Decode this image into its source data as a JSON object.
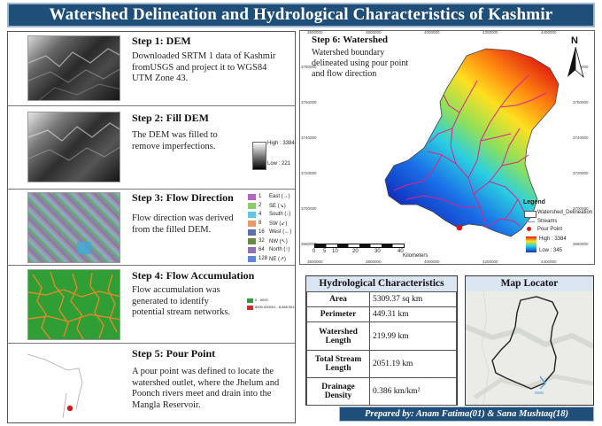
{
  "title": "Watershed Delineation and Hydrological Characteristics of Kashmir",
  "steps": [
    {
      "title": "Step 1: DEM",
      "desc": "Downloaded SRTM 1 data of Kashmir fromUSGS and project it to WGS84 UTM Zone 43."
    },
    {
      "title": "Step 2: Fill DEM",
      "desc": "The DEM was filled to remove imperfections."
    },
    {
      "title": "Step 3: Flow Direction",
      "desc": "Flow direction was derived from the filled DEM."
    },
    {
      "title": "Step 4: Flow Accumulation",
      "desc": "Flow accumulation was generated to identify potential stream networks."
    },
    {
      "title": "Step 5: Pour Point",
      "desc": "A pour point was defined to locate the watershed outlet, where the Jhelum and Poonch rivers meet and drain into the Mangla Reservoir."
    }
  ],
  "fill_legend": {
    "high": "High : 3384",
    "low": "Low : 221"
  },
  "flow_dir_legend": [
    {
      "code": "1",
      "label": "East (→)",
      "color": "#b565c0"
    },
    {
      "code": "2",
      "label": "SE (↘)",
      "color": "#8ccc6a"
    },
    {
      "code": "4",
      "label": "South (↓)",
      "color": "#5fc8e0"
    },
    {
      "code": "8",
      "label": "SW (↙)",
      "color": "#e69a6a"
    },
    {
      "code": "16",
      "label": "West (←)",
      "color": "#5a6fb0"
    },
    {
      "code": "32",
      "label": "NW (↖)",
      "color": "#6a8a48"
    },
    {
      "code": "64",
      "label": "North (↑)",
      "color": "#8f6fb8"
    },
    {
      "code": "128",
      "label": "NE (↗)",
      "color": "#5e86d6"
    }
  ],
  "flow_acc_legend": [
    {
      "label": "0 - 5000",
      "color": "#2e9e35"
    },
    {
      "label": "5000.000001 - 8,885,961",
      "color": "#d12a2a"
    }
  ],
  "map": {
    "step_title": "Step 6: Watershed",
    "desc": "Watershed boundary delineated using pour point and flow direction",
    "north_label": "N",
    "legend": {
      "title": "Legend",
      "boundary": "Watershed_Delineation",
      "streams": "Streams",
      "pour_point": "Pour Point",
      "high": "High : 3384",
      "low": "Low : 345"
    },
    "scale_labels": [
      "0",
      "5",
      "10",
      "20",
      "30",
      "40"
    ],
    "scale_unit": "Kilometers",
    "top_ticks": [
      "3600000",
      "3800000",
      "4000000",
      "4200000",
      "4400000"
    ],
    "bottom_ticks": [
      "3600000",
      "3800000",
      "4000000",
      "4200000",
      "4400000"
    ],
    "left_ticks": [
      "3780000",
      "3760000",
      "3740000",
      "3720000",
      "3700000",
      "3680000"
    ],
    "right_ticks": [
      "3780000",
      "3760000",
      "3740000",
      "3720000",
      "3700000",
      "3680000"
    ]
  },
  "hydro": {
    "title": "Hydrological Characteristics",
    "rows": [
      {
        "key": "Area",
        "value": "5309.37 sq km"
      },
      {
        "key": "Perimeter",
        "value": "449.31 km"
      },
      {
        "key": "Watershed Length",
        "value": "219.99 km"
      },
      {
        "key": "Total Stream Length",
        "value": "2051.19 km"
      },
      {
        "key": "Drainage Density",
        "value": "0.386 km/km²"
      }
    ]
  },
  "locator": {
    "title": "Map Locator"
  },
  "footer": "Prepared by: Anam Fatima(01) & Sana Mushtaq(18)"
}
